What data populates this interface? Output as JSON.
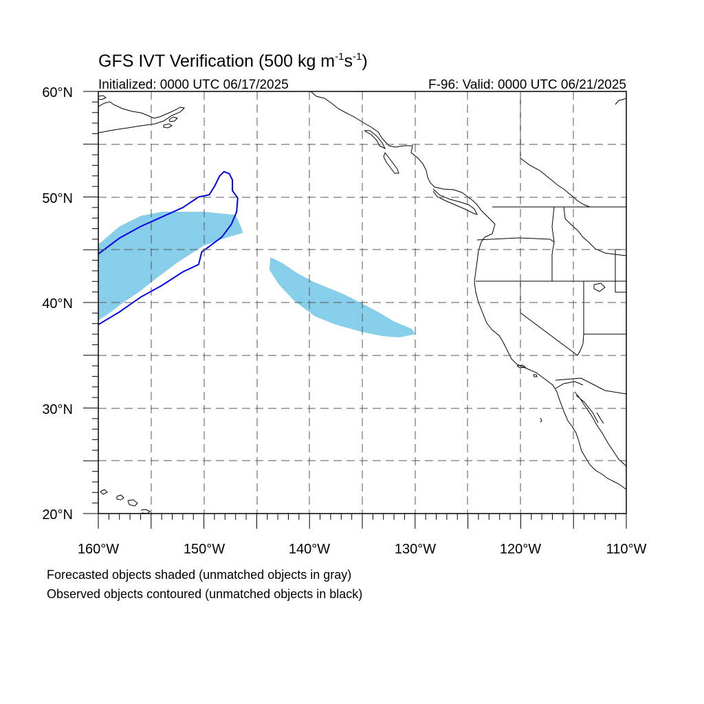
{
  "title": {
    "main": "GFS IVT Verification (500 kg m",
    "sup1": "-1",
    "mid": "s",
    "sup2": "-1",
    "end": ")"
  },
  "initialized": "Initialized: 0000 UTC 06/17/2025",
  "valid": "F-96: Valid: 0000 UTC 06/21/2025",
  "lat_labels": [
    "60°N",
    "50°N",
    "40°N",
    "30°N",
    "20°N"
  ],
  "lon_labels": [
    "160°W",
    "150°W",
    "140°W",
    "130°W",
    "120°W",
    "110°W"
  ],
  "notes": [
    "Forecasted objects shaded (unmatched objects in gray)",
    "Observed objects contoured (unmatched objects in black)"
  ],
  "extent": {
    "lon": [
      -160,
      -110
    ],
    "lat": [
      20,
      60
    ]
  },
  "colors": {
    "forecast_fill": "#87ceeb",
    "observed_contour": "#0000ee",
    "coast": "#000000",
    "grid": "#000000"
  },
  "forecast_objects": [
    {
      "name": "western-forecast-object",
      "coords": [
        [
          -160,
          45.5
        ],
        [
          -158,
          47.2
        ],
        [
          -156,
          48.2
        ],
        [
          -154,
          48.6
        ],
        [
          -150,
          48.6
        ],
        [
          -147,
          48.3
        ],
        [
          -146.5,
          47.2
        ],
        [
          -146.3,
          46.6
        ],
        [
          -148,
          46.1
        ],
        [
          -150,
          45.4
        ],
        [
          -152.5,
          43.8
        ],
        [
          -154.5,
          42.3
        ],
        [
          -156,
          41.1
        ],
        [
          -157.5,
          40.1
        ],
        [
          -158.8,
          39.1
        ],
        [
          -160,
          38.3
        ]
      ]
    },
    {
      "name": "eastern-forecast-object",
      "coords": [
        [
          -143.7,
          44.3
        ],
        [
          -142.5,
          43.7
        ],
        [
          -141.2,
          42.8
        ],
        [
          -139.5,
          41.9
        ],
        [
          -137,
          40.9
        ],
        [
          -135,
          39.9
        ],
        [
          -133.5,
          39.1
        ],
        [
          -132,
          38.2
        ],
        [
          -130.3,
          37.5
        ],
        [
          -130,
          37
        ],
        [
          -131.5,
          36.7
        ],
        [
          -133,
          36.8
        ],
        [
          -135,
          37.2
        ],
        [
          -137.5,
          37.9
        ],
        [
          -139.5,
          38.7
        ],
        [
          -141.5,
          40.2
        ],
        [
          -142.9,
          41.7
        ],
        [
          -143.8,
          43.1
        ]
      ]
    }
  ],
  "observed_objects": [
    {
      "name": "observed-contour-object",
      "coords": [
        [
          -160,
          44.6
        ],
        [
          -158,
          46.1
        ],
        [
          -156,
          47.2
        ],
        [
          -154,
          48.1
        ],
        [
          -152,
          49
        ],
        [
          -150.5,
          50
        ],
        [
          -149.5,
          50.2
        ],
        [
          -149,
          51
        ],
        [
          -148.5,
          52
        ],
        [
          -148.1,
          52.4
        ],
        [
          -147.6,
          52.2
        ],
        [
          -147.3,
          51.6
        ],
        [
          -147.3,
          50.6
        ],
        [
          -146.8,
          49.9
        ],
        [
          -146.9,
          48.6
        ],
        [
          -147.4,
          47.4
        ],
        [
          -148.3,
          46.2
        ],
        [
          -149.5,
          45.3
        ],
        [
          -150.2,
          44.8
        ],
        [
          -150.5,
          43.6
        ],
        [
          -152,
          42.9
        ],
        [
          -154,
          41.6
        ],
        [
          -156,
          40.5
        ],
        [
          -158,
          39.1
        ],
        [
          -160,
          37.9
        ]
      ]
    }
  ]
}
